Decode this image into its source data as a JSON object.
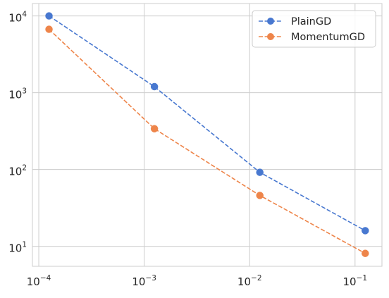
{
  "chart_data": {
    "type": "line",
    "title": "",
    "xlabel": "",
    "ylabel": "",
    "xscale": "log",
    "yscale": "log",
    "x": [
      0.000125,
      0.00125,
      0.0125,
      0.125
    ],
    "xlim": [
      8.7e-05,
      0.18
    ],
    "ylim": [
      5.5,
      14500
    ],
    "x_ticks": [
      {
        "value": 0.0001,
        "base": "10",
        "exp": "−4"
      },
      {
        "value": 0.001,
        "base": "10",
        "exp": "−3"
      },
      {
        "value": 0.01,
        "base": "10",
        "exp": "−2"
      },
      {
        "value": 0.1,
        "base": "10",
        "exp": "−1"
      }
    ],
    "y_ticks": [
      {
        "value": 10,
        "base": "10",
        "exp": "1"
      },
      {
        "value": 100,
        "base": "10",
        "exp": "2"
      },
      {
        "value": 1000,
        "base": "10",
        "exp": "3"
      },
      {
        "value": 10000,
        "base": "10",
        "exp": "4"
      }
    ],
    "grid": true,
    "legend_position": "top-right",
    "series": [
      {
        "name": "PlainGD",
        "color": "#4878d0",
        "linestyle": "dashed",
        "marker": "circle",
        "values": [
          10000,
          1200,
          92,
          16
        ]
      },
      {
        "name": "MomentumGD",
        "color": "#ee854a",
        "linestyle": "dashed",
        "marker": "circle",
        "values": [
          6700,
          340,
          46,
          8.1
        ]
      }
    ]
  }
}
